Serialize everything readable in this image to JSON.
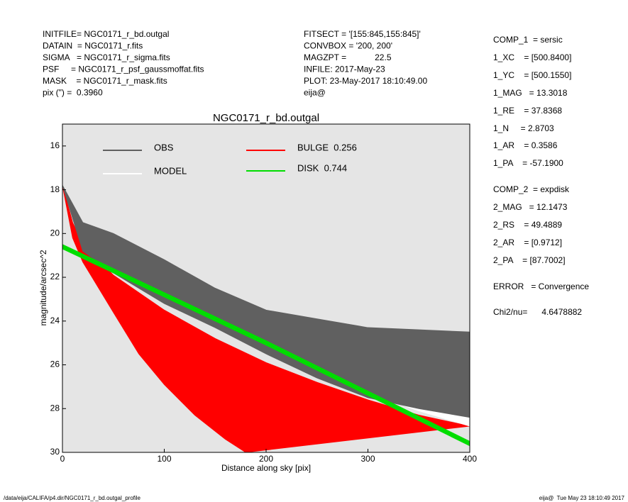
{
  "header": {
    "left": [
      "INITFILE= NGC0171_r_bd.outgal",
      "DATAIN  = NGC0171_r.fits",
      "SIGMA   = NGC0171_r_sigma.fits",
      "PSF     = NGC0171_r_psf_gaussmoffat.fits",
      "MASK    = NGC0171_r_mask.fits",
      "pix (\") =  0.3960"
    ],
    "middle": [
      "FITSECT = '[155:845,155:845]'",
      "CONVBOX = '200, 200'",
      "MAGZPT =            22.5",
      "INFILE: 2017-May-23",
      "PLOT: 23-May-2017 18:10:49.00",
      "eija@"
    ],
    "right": [
      "COMP_1  = sersic",
      "1_XC    = [500.8400]",
      "1_YC    = [500.1550]",
      "1_MAG   = 13.3018",
      "1_RE    = 37.8368",
      "1_N     = 2.8703",
      "1_AR    = 0.3586",
      "1_PA    = -57.1900",
      "COMP_2  = expdisk",
      "2_MAG   = 12.1473",
      "2_RS    = 49.4889",
      "2_AR    = [0.9712]",
      "2_PA    = [87.7002]",
      "ERROR   = Convergence",
      "Chi2/nu=      4.6478882"
    ]
  },
  "footer": {
    "left": "/data/eija/CALIFA/p4.dir/NGC0171_r_bd.outgal_profile",
    "right": "eija@  Tue May 23 18:10:49 2017"
  },
  "chart_data": {
    "type": "band",
    "title": "NGC0171_r_bd.outgal",
    "xlabel": "Distance along sky [pix]",
    "ylabel": "magnitude/arcsec^2",
    "xlim": [
      0,
      400
    ],
    "xticks": [
      0,
      100,
      200,
      300,
      400
    ],
    "ylim": [
      30,
      15
    ],
    "yticks": [
      16,
      18,
      20,
      22,
      24,
      26,
      28,
      30
    ],
    "series": [
      {
        "name": "BULGE  0.256",
        "color": "#ff0000",
        "x": [
          0,
          10,
          20,
          50,
          100,
          150,
          200,
          250,
          300,
          350,
          400
        ],
        "values": [
          17.8,
          19.5,
          20.5,
          21.9,
          23.5,
          24.8,
          25.9,
          26.8,
          27.6,
          28.3,
          28.8
        ],
        "x_lower": [
          0,
          10,
          20,
          50,
          75,
          100,
          130,
          160,
          180
        ],
        "values_lower": [
          17.8,
          20.2,
          21.3,
          23.6,
          25.5,
          26.9,
          28.3,
          29.4,
          30
        ]
      },
      {
        "name": "MODEL",
        "color": "#ffffff",
        "x": [
          0,
          20,
          50,
          100,
          150,
          200,
          250,
          300,
          350,
          400
        ],
        "values": [
          17.8,
          19.6,
          20.7,
          22.0,
          23.0,
          24.3,
          25.4,
          26.3,
          27.2,
          28.0
        ],
        "x_lower": [
          0,
          20,
          50,
          100,
          150,
          200,
          250,
          300,
          350,
          400
        ],
        "values_lower": [
          17.8,
          20.6,
          21.6,
          22.8,
          24.0,
          25.3,
          26.4,
          27.3,
          28.1,
          28.8
        ]
      },
      {
        "name": "OBS",
        "color": "#606060",
        "x": [
          0,
          20,
          50,
          100,
          150,
          200,
          250,
          300,
          350,
          400
        ],
        "values": [
          17.8,
          19.5,
          20.0,
          21.2,
          22.5,
          23.5,
          23.9,
          24.3,
          24.4,
          24.5
        ],
        "x_lower": [
          0,
          20,
          50,
          100,
          150,
          200,
          250,
          300,
          350,
          400
        ],
        "values_lower": [
          17.8,
          20.8,
          21.8,
          23.2,
          24.3,
          25.5,
          26.6,
          27.5,
          28.0,
          28.4
        ]
      },
      {
        "name": "DISK  0.744",
        "color": "#00dd00",
        "x": [
          0,
          100,
          200,
          300,
          400
        ],
        "values": [
          20.5,
          22.7,
          24.9,
          27.2,
          29.5
        ],
        "x_lower": [
          0,
          100,
          200,
          300,
          400
        ],
        "values_lower": [
          20.7,
          22.9,
          25.1,
          27.4,
          29.7
        ]
      }
    ]
  }
}
